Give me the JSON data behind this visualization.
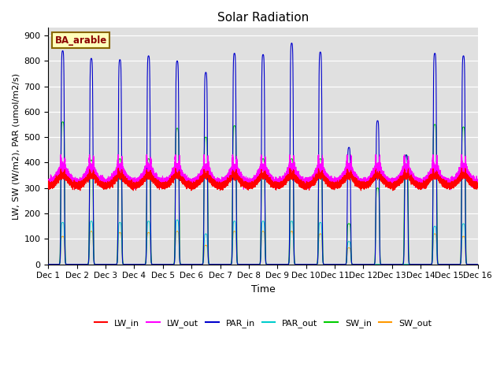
{
  "title": "Solar Radiation",
  "xlabel": "Time",
  "ylabel": "LW, SW (W/m2), PAR (umol/m2/s)",
  "annotation": "BA_arable",
  "n_days": 15,
  "ylim": [
    0,
    930
  ],
  "yticks": [
    0,
    100,
    200,
    300,
    400,
    500,
    600,
    700,
    800,
    900
  ],
  "xtick_labels": [
    "Dec 1",
    "Dec 2",
    "Dec 3",
    "Dec 4",
    "Dec 5",
    "Dec 6",
    "Dec 7",
    "Dec 8",
    "Dec 9",
    "Dec 10",
    "Dec 11",
    "Dec 12",
    "Dec 13",
    "Dec 14",
    "Dec 15",
    "Dec 16"
  ],
  "colors": {
    "LW_in": "#ff0000",
    "LW_out": "#ff00ff",
    "PAR_in": "#0000cc",
    "PAR_out": "#00cccc",
    "SW_in": "#00cc00",
    "SW_out": "#ff9900"
  },
  "par_in_peaks": [
    840,
    810,
    805,
    820,
    800,
    755,
    830,
    825,
    870,
    835,
    460,
    565,
    430,
    830,
    820
  ],
  "sw_in_peaks": [
    560,
    410,
    415,
    415,
    535,
    500,
    545,
    415,
    415,
    415,
    160,
    300,
    430,
    550,
    540
  ],
  "par_out_peaks": [
    165,
    170,
    165,
    170,
    175,
    120,
    170,
    170,
    170,
    165,
    90,
    0,
    0,
    150,
    160
  ],
  "sw_out_peaks": [
    110,
    130,
    125,
    125,
    130,
    75,
    130,
    130,
    130,
    120,
    65,
    0,
    0,
    120,
    110
  ],
  "bg_color": "#e0e0e0",
  "grid_color": "#ffffff"
}
